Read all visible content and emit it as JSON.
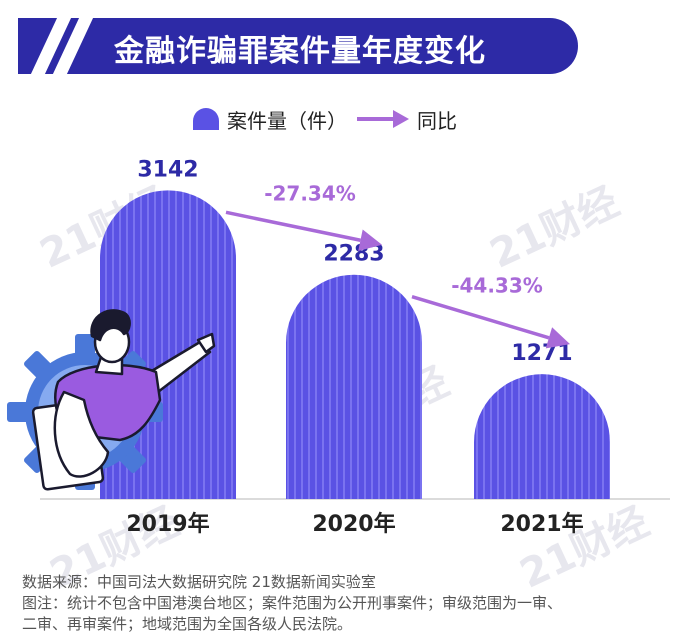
{
  "title": "金融诈骗罪案件量年度变化",
  "legend": {
    "bar_label": "案件量（件）",
    "line_label": "同比"
  },
  "chart_data": {
    "type": "bar",
    "title": "金融诈骗罪案件量年度变化",
    "categories": [
      "2019年",
      "2020年",
      "2021年"
    ],
    "series": [
      {
        "name": "案件量（件）",
        "values": [
          3142,
          2283,
          1271
        ]
      }
    ],
    "yoy": {
      "name": "同比",
      "labels": [
        "-27.34%",
        "-44.33%"
      ]
    },
    "ylim": [
      0,
      3400
    ],
    "grid": false,
    "legend_position": "top-center"
  },
  "watermark": "21财经",
  "footer": {
    "source": "数据来源：中国司法大数据研究院  21数据新闻实验室",
    "note_line1": "图注：统计不包含中国港澳台地区；案件范围为公开刑事案件；审级范围为一审、",
    "note_line2": "二审、再审案件；地域范围为全国各级人民法院。"
  },
  "colors": {
    "bar": "#5a52e4",
    "bar_stripe": "#7a73f0",
    "arrow": "#a86ad8",
    "title_bg": "#2d2aa6",
    "value_label": "#2d2aa6",
    "gear": "#4a78d8",
    "shirt": "#9a5be0"
  }
}
